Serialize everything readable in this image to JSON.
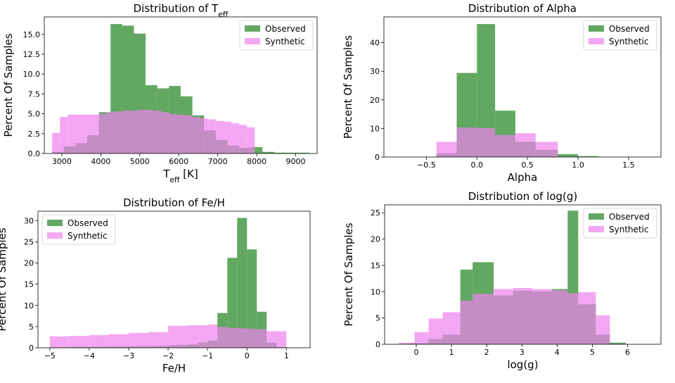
{
  "chart_data": [
    {
      "type": "bar",
      "title": "Distribution of T",
      "title_sub": "eff",
      "xlabel": "T",
      "xlabel_sub": "eff",
      "xlabel_suffix": " [K]",
      "ylabel": "Percent Of Samples",
      "xlim": [
        2550,
        9550
      ],
      "ylim": [
        0,
        17.2
      ],
      "xticks": [
        3000,
        4000,
        5000,
        6000,
        7000,
        8000,
        9000
      ],
      "xtick_labels": [
        "3000",
        "4000",
        "5000",
        "6000",
        "7000",
        "8000",
        "9000"
      ],
      "yticks": [
        0,
        2.5,
        5.0,
        7.5,
        10.0,
        12.5,
        15.0
      ],
      "ytick_labels": [
        "0.0",
        "2.5",
        "5.0",
        "7.5",
        "10.0",
        "12.5",
        "15.0"
      ],
      "legend_position": "top-right",
      "grid": false,
      "series": [
        {
          "name": "Observed",
          "color": "#2e8b2e",
          "edges": [
            2750,
            3050,
            3350,
            3650,
            3950,
            4250,
            4550,
            4850,
            5150,
            5450,
            5750,
            6050,
            6350,
            6650,
            6950,
            7250,
            7550,
            7850,
            8150,
            8450,
            8750,
            9050,
            9350
          ],
          "values": [
            0.2,
            0.9,
            1.3,
            2.3,
            5.2,
            16.3,
            16.1,
            15.1,
            8.6,
            8.2,
            8.5,
            7.2,
            4.8,
            2.9,
            1.7,
            1.0,
            0.7,
            0.8,
            0.2,
            0.1,
            0.1,
            0.1
          ]
        },
        {
          "name": "Synthetic",
          "color": "#ee82ee",
          "edges": [
            2750,
            2950,
            3150,
            3350,
            3550,
            3750,
            3950,
            4150,
            4350,
            4550,
            4750,
            4950,
            5150,
            5350,
            5550,
            5750,
            5950,
            6150,
            6350,
            6550,
            6750,
            6950,
            7150,
            7350,
            7550,
            7750,
            7950
          ],
          "values": [
            2.6,
            4.6,
            4.9,
            4.9,
            4.9,
            4.9,
            5.0,
            5.2,
            5.3,
            5.4,
            5.4,
            5.5,
            5.5,
            5.4,
            5.2,
            5.0,
            4.9,
            4.8,
            4.6,
            4.4,
            4.3,
            4.1,
            4.0,
            3.8,
            3.6,
            3.3
          ]
        }
      ]
    },
    {
      "type": "bar",
      "title": "Distribution of Alpha",
      "xlabel": "Alpha",
      "ylabel": "Percent Of Samples",
      "xlim": [
        -0.92,
        1.82
      ],
      "ylim": [
        0,
        49
      ],
      "xticks": [
        -0.5,
        0.0,
        0.5,
        1.0,
        1.5
      ],
      "xtick_labels": [
        "−0.5",
        "0.0",
        "0.5",
        "1.0",
        "1.5"
      ],
      "yticks": [
        0,
        10,
        20,
        30,
        40
      ],
      "ytick_labels": [
        "0",
        "10",
        "20",
        "30",
        "40"
      ],
      "legend_position": "top-right",
      "grid": false,
      "series": [
        {
          "name": "Observed",
          "color": "#2e8b2e",
          "edges": [
            -0.4,
            -0.2,
            0.0,
            0.18,
            0.38,
            0.58,
            0.8,
            1.0,
            1.2
          ],
          "values": [
            1.3,
            29.4,
            46.5,
            16.2,
            5.3,
            2.5,
            1.0,
            0.3
          ]
        },
        {
          "name": "Synthetic",
          "color": "#ee82ee",
          "edges": [
            -0.4,
            -0.2,
            0.0,
            0.18,
            0.38,
            0.58,
            0.8
          ],
          "values": [
            5.3,
            10.3,
            10.1,
            7.7,
            8.3,
            5.3
          ]
        }
      ]
    },
    {
      "type": "bar",
      "title": "Distribution of Fe/H",
      "xlabel": "Fe/H",
      "ylabel": "Percent Of Samples",
      "xlim": [
        -5.3,
        1.6
      ],
      "ylim": [
        0,
        32.2
      ],
      "xticks": [
        -5,
        -4,
        -3,
        -2,
        -1,
        0,
        1
      ],
      "xtick_labels": [
        "−5",
        "−4",
        "−3",
        "−2",
        "−1",
        "0",
        "1"
      ],
      "yticks": [
        0,
        5,
        10,
        15,
        20,
        25,
        30
      ],
      "ytick_labels": [
        "0",
        "5",
        "10",
        "15",
        "20",
        "25",
        "30"
      ],
      "legend_position": "top-left",
      "grid": false,
      "series": [
        {
          "name": "Observed",
          "color": "#2e8b2e",
          "edges": [
            -5.0,
            -4.75,
            -4.5,
            -4.25,
            -4.0,
            -3.75,
            -3.5,
            -3.25,
            -3.0,
            -2.75,
            -2.5,
            -2.25,
            -2.0,
            -1.75,
            -1.5,
            -1.25,
            -1.0,
            -0.75,
            -0.5,
            -0.25,
            0.0,
            0.25,
            0.5,
            0.75,
            1.0
          ],
          "values": [
            0.1,
            0.1,
            0.2,
            0.2,
            0.2,
            0.2,
            0.3,
            0.3,
            0.3,
            0.4,
            0.4,
            0.5,
            0.6,
            0.7,
            0.8,
            1.2,
            1.7,
            8.2,
            21.2,
            30.6,
            23.2,
            8.5,
            1.2,
            0.2
          ]
        },
        {
          "name": "Synthetic",
          "color": "#ee82ee",
          "edges": [
            -5.0,
            -4.5,
            -4.0,
            -3.5,
            -3.0,
            -2.5,
            -2.0,
            -1.5,
            -1.0,
            -0.75,
            -0.5,
            -0.25,
            0.0,
            0.25,
            0.5,
            1.0
          ],
          "values": [
            2.7,
            2.8,
            3.0,
            3.2,
            3.5,
            3.7,
            5.2,
            5.3,
            5.5,
            4.9,
            4.7,
            4.6,
            4.5,
            4.4,
            3.9
          ]
        }
      ]
    },
    {
      "type": "bar",
      "title": "Distribution of log(g)",
      "xlabel": "log(g)",
      "ylabel": "Percent Of Samples",
      "xlim": [
        -0.9,
        6.95
      ],
      "ylim": [
        0,
        26.5
      ],
      "xticks": [
        0,
        1,
        2,
        3,
        4,
        5,
        6
      ],
      "xtick_labels": [
        "0",
        "1",
        "2",
        "3",
        "4",
        "5",
        "6"
      ],
      "yticks": [
        0,
        5,
        10,
        15,
        20,
        25
      ],
      "ytick_labels": [
        "0",
        "5",
        "10",
        "15",
        "20",
        "25"
      ],
      "legend_position": "top-right",
      "grid": false,
      "series": [
        {
          "name": "Observed",
          "color": "#2e8b2e",
          "edges": [
            -0.5,
            -0.15,
            0.35,
            0.75,
            1.25,
            1.6,
            2.2,
            2.75,
            3.3,
            3.85,
            4.3,
            4.6,
            5.1,
            5.5,
            5.95
          ],
          "values": [
            0.1,
            0.2,
            1.0,
            1.8,
            14.2,
            15.6,
            9.3,
            10.2,
            10.1,
            10.5,
            25.4,
            7.6,
            1.8,
            0.3
          ]
        },
        {
          "name": "Synthetic",
          "color": "#ee82ee",
          "edges": [
            -0.5,
            -0.05,
            0.35,
            0.75,
            1.25,
            1.6,
            2.2,
            2.75,
            3.3,
            3.85,
            4.3,
            4.6,
            5.1,
            5.5
          ],
          "values": [
            0.3,
            2.3,
            4.9,
            6.1,
            8.3,
            9.6,
            10.5,
            10.7,
            10.5,
            10.3,
            9.7,
            9.9,
            5.5
          ]
        }
      ]
    }
  ]
}
